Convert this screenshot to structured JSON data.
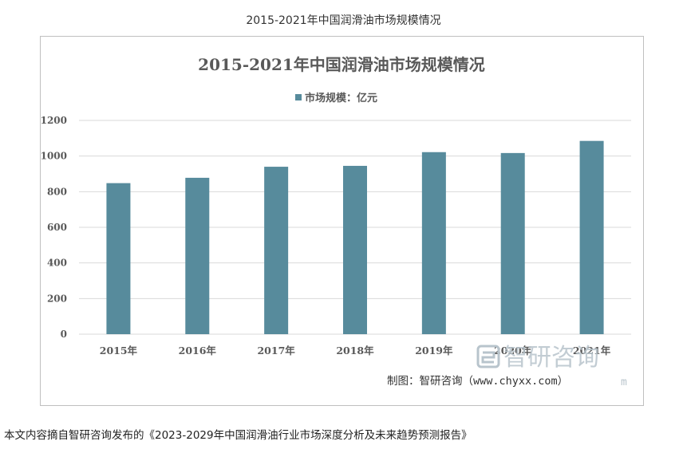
{
  "caption": "2015-2021年中国润滑油市场规模情况",
  "chart_data": {
    "type": "bar",
    "title": "2015-2021年中国润滑油市场规模情况",
    "categories": [
      "2015年",
      "2016年",
      "2017年",
      "2018年",
      "2019年",
      "2020年",
      "2021年"
    ],
    "series": [
      {
        "name": "市场规模：亿元",
        "values": [
          848,
          878,
          940,
          945,
          1022,
          1017,
          1085
        ],
        "color": "#578b9c"
      }
    ],
    "yticks": [
      0,
      200,
      400,
      600,
      800,
      1000,
      1200
    ],
    "ylim": [
      0,
      1200
    ],
    "grid": true,
    "legend_position": "top-center"
  },
  "watermark": {
    "brand": "智研咨询",
    "url_fragment": "m",
    "credit": "制图：智研咨询（www.chyxx.com）"
  },
  "footnote": "本文内容摘自智研咨询发布的《2023-2029年中国润滑油行业市场深度分析及未来趋势预测报告》",
  "colors": {
    "bar": "#578b9c",
    "grid": "#d9d9d9",
    "text": "#595959",
    "watermark": "#b8c4cc"
  }
}
